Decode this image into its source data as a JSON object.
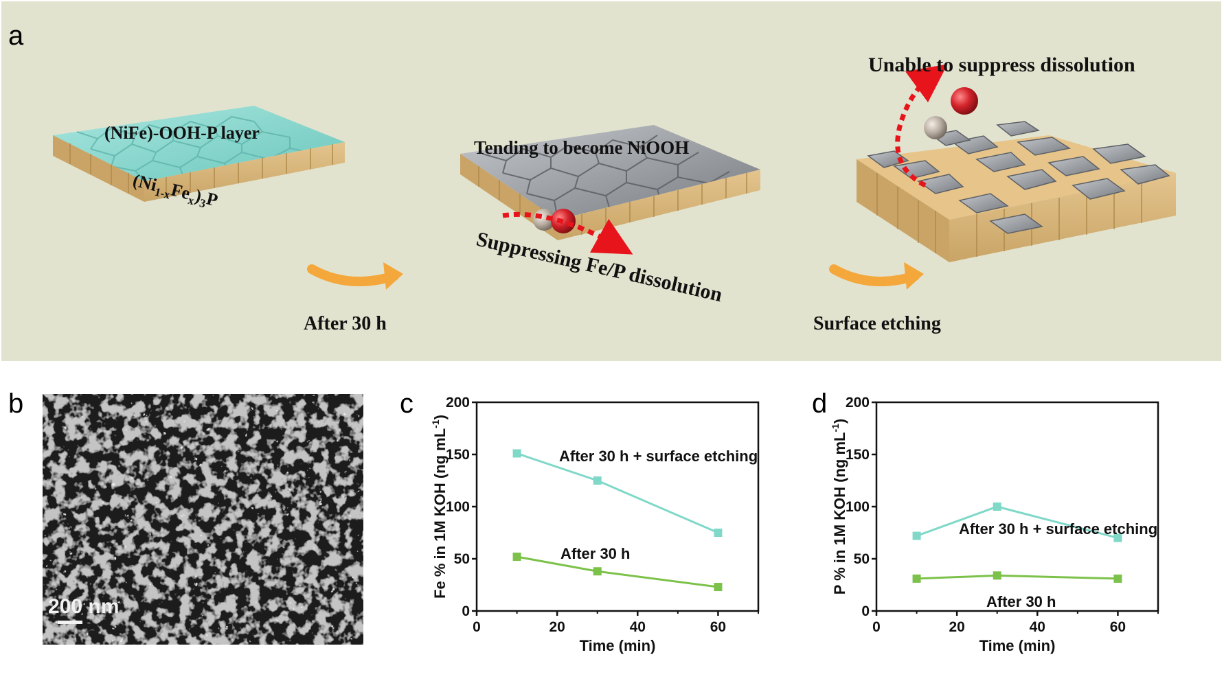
{
  "panels": {
    "a": "a",
    "b": "b",
    "c": "c",
    "d": "d"
  },
  "schematic": {
    "layer_label": "(NiFe)-OOH-P layer",
    "bulk_label_main": "(Ni",
    "bulk_sub1": "1-x",
    "bulk_mid": "Fe",
    "bulk_sub2": "x",
    "bulk_close": ")",
    "bulk_sub3": "3",
    "bulk_end": "P",
    "step1_label": "After 30 h",
    "middle_top_label": "Tending to become NiOOH",
    "middle_bottom_label": "Suppressing Fe/P dissolution",
    "step2_label": "Surface etching",
    "right_top_label": "Unable to suppress dissolution",
    "colors": {
      "background": "#e2e3cf",
      "oxyhydroxide": "#8fd8d0",
      "grey_grain": "#9a9ea3",
      "bulk": "#d6b57c",
      "arrow": "#f4a73a",
      "dissolution_arrow": "#e8141b",
      "red_sphere": "#d4232b",
      "grey_sphere": "#b8aca0"
    }
  },
  "sem": {
    "scale_label": "200 nm"
  },
  "chart_data": [
    {
      "type": "line",
      "panel": "c",
      "xlabel": "Time (min)",
      "ylabel_main": "Fe % in 1M KOH (ng mL",
      "ylabel_sup": "-1",
      "ylabel_close": ")",
      "xlim": [
        0,
        70
      ],
      "ylim": [
        0,
        200
      ],
      "xticks": [
        0,
        20,
        40,
        60
      ],
      "yticks": [
        0,
        50,
        100,
        150,
        200
      ],
      "x": [
        10,
        30,
        60
      ],
      "series": [
        {
          "values": [
            151,
            125,
            75
          ],
          "color": "#7fd8c8",
          "label": "After 30 h + surface etching"
        },
        {
          "values": [
            52,
            38,
            23
          ],
          "color": "#7cc24a",
          "label": "After 30 h"
        }
      ]
    },
    {
      "type": "line",
      "panel": "d",
      "xlabel": "Time (min)",
      "ylabel_main": "P % in 1M KOH (ng mL",
      "ylabel_sup": "-1",
      "ylabel_close": ")",
      "xlim": [
        0,
        70
      ],
      "ylim": [
        0,
        200
      ],
      "xticks": [
        0,
        20,
        40,
        60
      ],
      "yticks": [
        0,
        50,
        100,
        150,
        200
      ],
      "x": [
        10,
        30,
        60
      ],
      "series": [
        {
          "values": [
            72,
            100,
            70
          ],
          "color": "#7fd8c8",
          "label": "After 30 h + surface etching"
        },
        {
          "values": [
            31,
            34,
            31
          ],
          "color": "#7cc24a",
          "label": "After 30 h"
        }
      ]
    }
  ]
}
